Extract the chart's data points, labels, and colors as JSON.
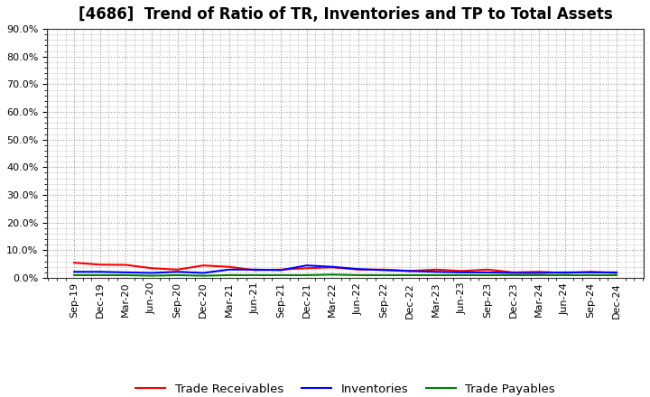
{
  "title": "[4686]  Trend of Ratio of TR, Inventories and TP to Total Assets",
  "x_labels": [
    "Sep-19",
    "Dec-19",
    "Mar-20",
    "Jun-20",
    "Sep-20",
    "Dec-20",
    "Mar-21",
    "Jun-21",
    "Sep-21",
    "Dec-21",
    "Mar-22",
    "Jun-22",
    "Sep-22",
    "Dec-22",
    "Mar-23",
    "Jun-23",
    "Sep-23",
    "Dec-23",
    "Mar-24",
    "Jun-24",
    "Sep-24",
    "Dec-24"
  ],
  "trade_receivables": [
    0.055,
    0.048,
    0.047,
    0.035,
    0.03,
    0.045,
    0.04,
    0.028,
    0.03,
    0.035,
    0.038,
    0.03,
    0.03,
    0.025,
    0.03,
    0.025,
    0.03,
    0.02,
    0.022,
    0.018,
    0.022,
    0.018
  ],
  "inventories": [
    0.022,
    0.022,
    0.02,
    0.018,
    0.022,
    0.018,
    0.03,
    0.03,
    0.028,
    0.045,
    0.04,
    0.032,
    0.028,
    0.025,
    0.022,
    0.02,
    0.02,
    0.018,
    0.018,
    0.02,
    0.02,
    0.02
  ],
  "trade_payables": [
    0.01,
    0.01,
    0.01,
    0.008,
    0.01,
    0.008,
    0.01,
    0.01,
    0.01,
    0.01,
    0.012,
    0.01,
    0.01,
    0.01,
    0.01,
    0.01,
    0.01,
    0.01,
    0.01,
    0.01,
    0.01,
    0.01
  ],
  "tr_color": "#ff0000",
  "inv_color": "#0000ff",
  "tp_color": "#008000",
  "ylim": [
    0,
    0.9
  ],
  "yticks": [
    0.0,
    0.1,
    0.2,
    0.3,
    0.4,
    0.5,
    0.6,
    0.7,
    0.8,
    0.9
  ],
  "grid_color": "#999999",
  "bg_color": "#ffffff",
  "legend_labels": [
    "Trade Receivables",
    "Inventories",
    "Trade Payables"
  ],
  "title_fontsize": 12,
  "tick_fontsize": 8,
  "legend_fontsize": 9.5
}
